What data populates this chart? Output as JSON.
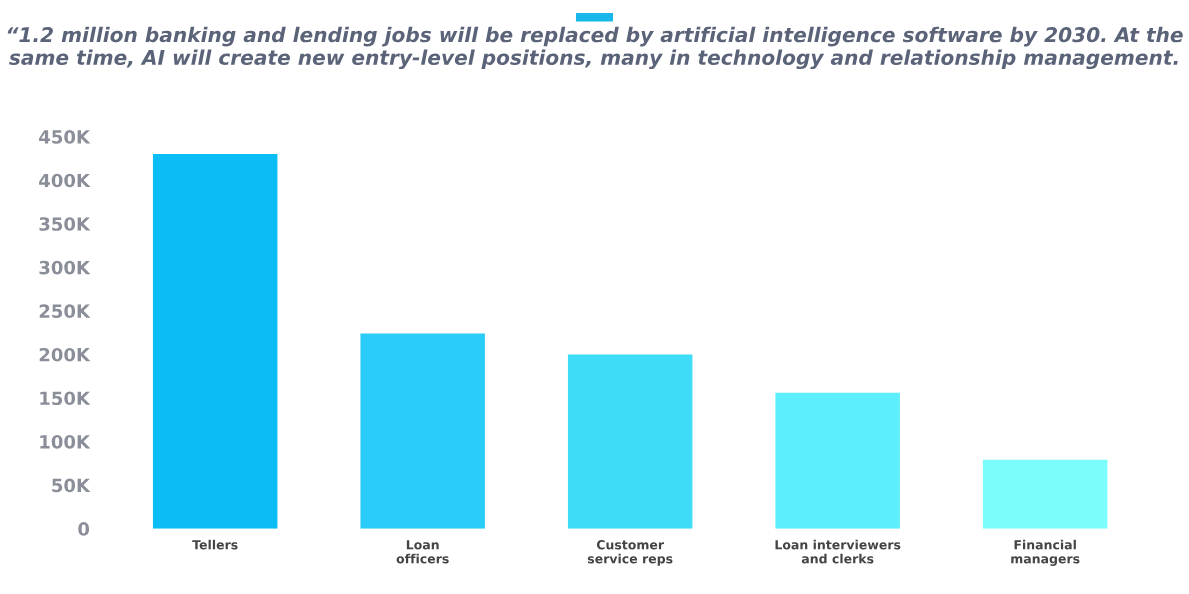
{
  "chart_data": {
    "type": "bar",
    "title": "“1.2 million banking and lending jobs will be replaced by artificial intelligence software by 2030. At the same time, AI will create new entry-level positions, many in technology and relationship management.",
    "categories": [
      "Tellers",
      "Loan\nofficers",
      "Customer\nservice reps",
      "Loan interviewers\nand clerks",
      "Financial\nmanagers"
    ],
    "values": [
      430000,
      224000,
      200000,
      156000,
      79000
    ],
    "colors": [
      "#0bbdf5",
      "#29cdf7",
      "#3fdcf7",
      "#5ceefc",
      "#7dfcfc"
    ],
    "ylim": [
      0,
      450000
    ],
    "yticks": [
      {
        "value": 0,
        "label": "0"
      },
      {
        "value": 50000,
        "label": "50K"
      },
      {
        "value": 100000,
        "label": "100K"
      },
      {
        "value": 150000,
        "label": "150K"
      },
      {
        "value": 200000,
        "label": "200K"
      },
      {
        "value": 250000,
        "label": "250K"
      },
      {
        "value": 300000,
        "label": "300K"
      },
      {
        "value": 350000,
        "label": "350K"
      },
      {
        "value": 400000,
        "label": "400K"
      },
      {
        "value": 450000,
        "label": "450K"
      }
    ],
    "grid": false,
    "legend": false
  }
}
